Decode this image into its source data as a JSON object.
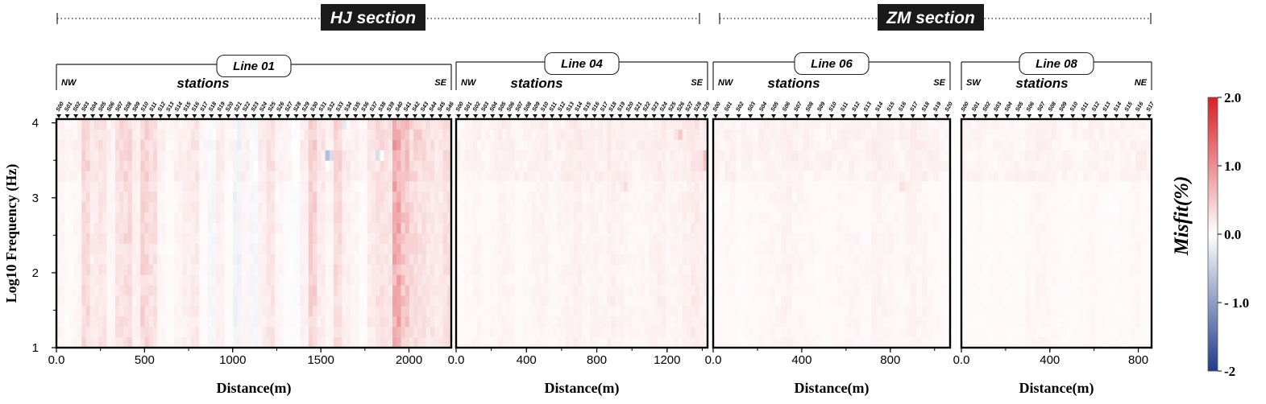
{
  "figure": {
    "sections": [
      {
        "label": "HJ section"
      },
      {
        "label": "ZM section"
      }
    ],
    "y_axis_label": "Log10 Frequency (Hz)",
    "x_axis_label": "Distance(m)",
    "y_ticks": [
      "1",
      "2",
      "3",
      "4"
    ],
    "colorbar": {
      "title": "Misfit(%)",
      "tick_labels": [
        "2.0",
        "1.0",
        "0.0",
        "- 1.0",
        "-2"
      ],
      "range": [
        -2,
        2
      ],
      "colors": {
        "negative": "#1f3c8c",
        "zero": "#ffffff",
        "positive": "#d91f26"
      }
    }
  },
  "chart_data": [
    {
      "type": "heatmap",
      "line_label": "Line 01",
      "direction_left": "NW",
      "direction_right": "SE",
      "stations_label": "stations",
      "xlim": [
        0,
        2240
      ],
      "ylim": [
        1,
        4.05
      ],
      "xticks": [
        "0.0",
        "500",
        "1000",
        "1500",
        "2000"
      ],
      "station_names": [
        "S00",
        "S01",
        "S02",
        "S03",
        "S04",
        "S05",
        "S06",
        "S07",
        "S08",
        "S09",
        "S10",
        "S11",
        "S12",
        "S13",
        "S14",
        "S15",
        "S16",
        "S17",
        "S18",
        "S19",
        "S20",
        "S21",
        "S22",
        "S23",
        "S24",
        "S25",
        "S26",
        "S27",
        "S28",
        "S29",
        "S30",
        "S31",
        "S32",
        "S33",
        "S34",
        "S35",
        "S36",
        "S37",
        "S38",
        "S39",
        "S40",
        "S41",
        "S42",
        "S43",
        "S44",
        "S45",
        "S46"
      ],
      "column_misfit_profile": [
        0.1,
        0.05,
        0.1,
        0.35,
        0.2,
        0.25,
        0.1,
        0.3,
        0.35,
        0.15,
        0.4,
        0.3,
        0.1,
        0.05,
        0.1,
        0.15,
        0.2,
        0.05,
        -0.1,
        0.15,
        0.05,
        -0.15,
        0.1,
        -0.1,
        0.15,
        0.25,
        0.1,
        0.05,
        -0.05,
        0.15,
        0.45,
        0.2,
        0.1,
        0.35,
        0.15,
        0.1,
        0.05,
        0.2,
        0.3,
        0.25,
        0.8,
        0.55,
        0.35,
        0.3,
        0.25,
        0.2,
        0.3
      ],
      "anomalies": [
        {
          "distance": 1545,
          "log_freq": 3.55,
          "misfit": -1.0
        },
        {
          "distance": 1640,
          "log_freq": 3.95,
          "misfit": -0.4
        },
        {
          "distance": 1830,
          "log_freq": 3.55,
          "misfit": -0.6
        },
        {
          "distance": 2050,
          "log_freq": 3.8,
          "misfit": 0.8
        }
      ]
    },
    {
      "type": "heatmap",
      "line_label": "Line 04",
      "direction_left": "NW",
      "direction_right": "SE",
      "stations_label": "stations",
      "xlim": [
        0,
        1430
      ],
      "ylim": [
        1,
        4.05
      ],
      "xticks": [
        "0.0",
        "400",
        "800",
        "1200"
      ],
      "station_names": [
        "S00",
        "S01",
        "S02",
        "S03",
        "S04",
        "S05",
        "S06",
        "S07",
        "S08",
        "S09",
        "S10",
        "S11",
        "S12",
        "S13",
        "S14",
        "S15",
        "S16",
        "S17",
        "S18",
        "S19",
        "S20",
        "S21",
        "S22",
        "S23",
        "S24",
        "S25",
        "S26",
        "S27",
        "S28",
        "S29"
      ],
      "column_misfit_profile": [
        0.05,
        0.08,
        0.1,
        0.06,
        0.08,
        0.12,
        0.1,
        0.06,
        0.08,
        0.1,
        0.12,
        0.08,
        0.1,
        0.12,
        0.15,
        0.1,
        0.12,
        0.1,
        0.15,
        0.12,
        0.1,
        0.08,
        0.1,
        0.12,
        0.15,
        0.1,
        0.12,
        0.15,
        0.2,
        0.15
      ],
      "anomalies": [
        {
          "distance": 1270,
          "log_freq": 3.85,
          "misfit": 0.55
        },
        {
          "distance": 1415,
          "log_freq": 3.5,
          "misfit": 0.9
        },
        {
          "distance": 960,
          "log_freq": 3.15,
          "misfit": 0.35
        }
      ]
    },
    {
      "type": "heatmap",
      "line_label": "Line 06",
      "direction_left": "NW",
      "direction_right": "SE",
      "stations_label": "stations",
      "xlim": [
        0,
        1070
      ],
      "ylim": [
        1,
        4.05
      ],
      "xticks": [
        "0.0",
        "400",
        "800"
      ],
      "station_names": [
        "S00",
        "S01",
        "S02",
        "S03",
        "S04",
        "S05",
        "S06",
        "S07",
        "S08",
        "S09",
        "S10",
        "S11",
        "S12",
        "S13",
        "S14",
        "S15",
        "S16",
        "S17",
        "S18",
        "S19",
        "S20"
      ],
      "column_misfit_profile": [
        0.06,
        0.08,
        0.05,
        0.07,
        0.08,
        0.1,
        0.12,
        0.1,
        0.08,
        0.06,
        0.07,
        0.08,
        0.1,
        0.08,
        0.12,
        0.1,
        0.08,
        0.12,
        0.1,
        0.08,
        0.06
      ],
      "anomalies": [
        {
          "distance": 860,
          "log_freq": 3.15,
          "misfit": 0.3
        }
      ]
    },
    {
      "type": "heatmap",
      "line_label": "Line 08",
      "direction_left": "SW",
      "direction_right": "NE",
      "stations_label": "stations",
      "xlim": [
        0,
        860
      ],
      "ylim": [
        1,
        4.05
      ],
      "xticks": [
        "0.0",
        "400",
        "800"
      ],
      "station_names": [
        "S00",
        "S01",
        "S02",
        "S03",
        "S04",
        "S05",
        "S06",
        "S07",
        "S08",
        "S09",
        "S10",
        "S11",
        "S12",
        "S13",
        "S14",
        "S15",
        "S16",
        "S17"
      ],
      "column_misfit_profile": [
        0.05,
        0.06,
        0.05,
        0.06,
        0.05,
        0.06,
        0.08,
        0.1,
        0.08,
        0.06,
        0.05,
        0.06,
        0.08,
        0.06,
        0.05,
        0.06,
        0.08,
        0.06
      ],
      "anomalies": [
        {
          "distance": 820,
          "log_freq": 3.5,
          "misfit": 0.25
        }
      ]
    }
  ]
}
